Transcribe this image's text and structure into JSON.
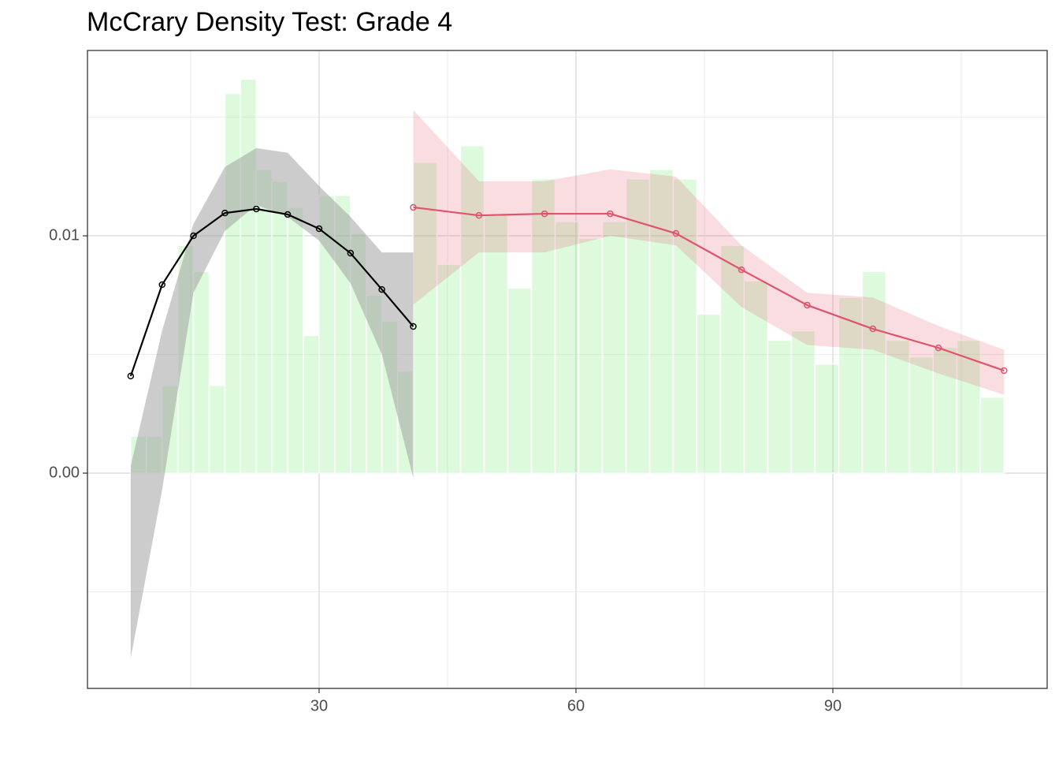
{
  "chart_data": {
    "type": "histogram",
    "title": "McCrary Density Test: Grade 4",
    "xlim": [
      2.95,
      115.03
    ],
    "ylim": [
      -0.00907,
      0.01781
    ],
    "xticks": [
      30,
      60,
      90
    ],
    "yticks": [
      {
        "value": 0,
        "label": "0.00"
      },
      0.01
    ],
    "x_minor_grid": [
      15,
      45,
      75,
      105
    ],
    "y_minor_grid": [
      -0.005,
      0.005,
      0.015
    ],
    "grid": true,
    "color": "#90ee90",
    "alpha": 0.3,
    "bins": [
      8,
      9.83,
      11.67,
      13.5,
      15.33,
      17.17,
      19,
      20.83,
      22.67,
      24.5,
      26.33,
      28.17,
      30,
      31.83,
      33.67,
      35.5,
      37.33,
      39.17,
      41,
      43.76,
      46.52,
      49.28,
      52.04,
      54.8,
      57.56,
      60.32,
      63.08,
      65.84,
      68.6,
      71.36,
      74.12,
      76.88,
      79.64,
      82.4,
      85.16,
      87.92,
      90.68,
      93.44,
      96.2,
      98.96,
      101.72,
      104.48,
      107.24,
      110
    ],
    "values": [
      0.00156,
      0.00156,
      0.0037,
      0.0096,
      0.0085,
      0.0037,
      0.016,
      0.0166,
      0.0128,
      0.0123,
      0.0112,
      0.0058,
      0.0117,
      0.0117,
      0.0101,
      0.0075,
      0.0064,
      0.0043,
      0.0131,
      0.0088,
      0.0138,
      0.0109,
      0.0078,
      0.0124,
      0.0106,
      0.0099,
      0.0106,
      0.0124,
      0.0128,
      0.0124,
      0.0067,
      0.0096,
      0.0081,
      0.0056,
      0.006,
      0.0046,
      0.0074,
      0.0085,
      0.0056,
      0.0049,
      0.0053,
      0.0056,
      0.0032
    ],
    "series": [
      {
        "color": "#000000",
        "band_color": "#999999",
        "band_alpha": 0.5,
        "x": [
          8,
          11.67,
          15.33,
          19,
          22.67,
          26.33,
          30,
          33.67,
          37.33,
          41
        ],
        "values": [
          0.00409,
          0.00794,
          0.01,
          0.01096,
          0.01113,
          0.0109,
          0.0103,
          0.00927,
          0.00774,
          0.00618
        ],
        "lower": [
          -0.0078,
          -0.0007,
          0.0076,
          0.0102,
          0.0113,
          0.0108,
          0.0098,
          0.008,
          0.005,
          -0.0002
        ],
        "upper": [
          0.0003,
          0.006,
          0.0105,
          0.0129,
          0.0137,
          0.0135,
          0.0121,
          0.0108,
          0.0093,
          0.0093
        ]
      },
      {
        "color": "#df536b",
        "band_color": "#df536b",
        "band_alpha": 0.2,
        "x": [
          41,
          48.67,
          56.33,
          64,
          71.67,
          79.33,
          87,
          94.67,
          102.33,
          110
        ],
        "values": [
          0.0112,
          0.01086,
          0.01093,
          0.01093,
          0.0101,
          0.00857,
          0.00708,
          0.00608,
          0.00528,
          0.00432
        ],
        "lower": [
          0.0071,
          0.0093,
          0.0093,
          0.01,
          0.0096,
          0.007,
          0.0054,
          0.0052,
          0.0042,
          0.0033
        ],
        "upper": [
          0.0153,
          0.0123,
          0.0123,
          0.0128,
          0.0125,
          0.0096,
          0.0076,
          0.0074,
          0.0062,
          0.0052
        ]
      }
    ]
  }
}
